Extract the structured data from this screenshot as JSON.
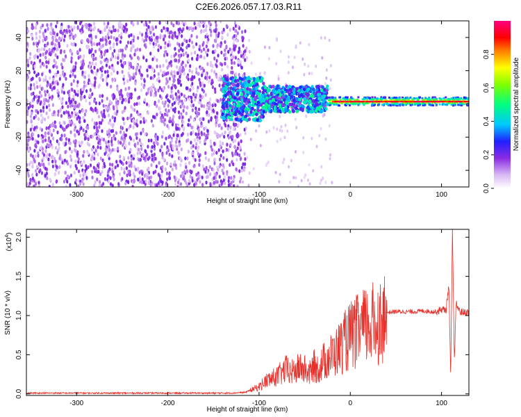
{
  "title": "C2E6.2026.057.17.03.R11",
  "chart_data": [
    {
      "type": "heatmap",
      "xlabel": "Height of straight line (km)",
      "ylabel": "Frequency (Hz)",
      "xlim": [
        -355,
        130
      ],
      "ylim": [
        -50,
        50
      ],
      "xticks": [
        -300,
        -200,
        -100,
        0,
        100
      ],
      "xtick_labels": [
        "-300",
        "-200",
        "-100",
        "0",
        "100"
      ],
      "yticks": [
        -40,
        -20,
        0,
        20,
        40
      ],
      "ytick_labels": [
        "-40",
        "-20",
        "0",
        "20",
        "40"
      ],
      "colorbar": {
        "label": "Normalized spectral amplitude",
        "range": [
          0,
          1
        ],
        "ticks": [
          0.0,
          0.2,
          0.4,
          0.6,
          0.8
        ],
        "tick_labels": [
          "0.0",
          "0.2",
          "0.4",
          "0.6",
          "0.8"
        ],
        "colormap": "rainbow (white-violet-blue-cyan-green-yellow-red-magenta)"
      },
      "regions": [
        {
          "x_range": [
            -355,
            -115
          ],
          "y_range": [
            -50,
            50
          ],
          "description_level": 0.15
        },
        {
          "x_range": [
            -140,
            -25
          ],
          "y_range": [
            -10,
            20
          ],
          "description_level": 0.3
        },
        {
          "x_range": [
            -25,
            130
          ],
          "y_range": [
            -2,
            5
          ],
          "description_level": 0.5
        }
      ]
    },
    {
      "type": "line",
      "xlabel": "Height of straight line (km)",
      "ylabel": "SNR (10 * v/v)",
      "y_multiplier": "(x10",
      "y_multiplier_exp": "4",
      "y_multiplier_close": ")",
      "xlim": [
        -355,
        130
      ],
      "ylim": [
        -0.02,
        2.1
      ],
      "xticks": [
        -300,
        -200,
        -100,
        0,
        100
      ],
      "xtick_labels": [
        "-300",
        "-200",
        "-100",
        "0",
        "100"
      ],
      "yticks": [
        0.0,
        0.5,
        1.0,
        1.5,
        2.0
      ],
      "ytick_labels": [
        "0.0",
        "0.5",
        "1.0",
        "1.5",
        "2.0"
      ],
      "color": "#e8302a",
      "series": [
        {
          "x": [
            -355,
            -300,
            -200,
            -130,
            -115,
            -110,
            -100,
            -95,
            -90,
            -85,
            -80,
            -75,
            -70,
            -65,
            -60,
            -55,
            -50,
            -45,
            -40,
            -35,
            -30,
            -25,
            -20,
            -15,
            -10,
            -5,
            0,
            10,
            20,
            30,
            40,
            50,
            60,
            70,
            80,
            90,
            95,
            100,
            105,
            108,
            110,
            112,
            114,
            116,
            120,
            125,
            130
          ],
          "y": [
            0.01,
            0.01,
            0.01,
            0.01,
            0.02,
            0.05,
            0.1,
            0.16,
            0.2,
            0.22,
            0.25,
            0.3,
            0.35,
            0.3,
            0.33,
            0.38,
            0.35,
            0.28,
            0.4,
            0.35,
            0.45,
            0.5,
            0.55,
            0.6,
            0.68,
            0.75,
            0.82,
            0.9,
            0.97,
            1.02,
            1.04,
            1.05,
            1.05,
            1.05,
            1.06,
            1.05,
            1.05,
            1.08,
            1.07,
            1.4,
            0.2,
            2.1,
            0.4,
            1.15,
            1.05,
            1.04,
            1.04
          ]
        }
      ]
    }
  ]
}
